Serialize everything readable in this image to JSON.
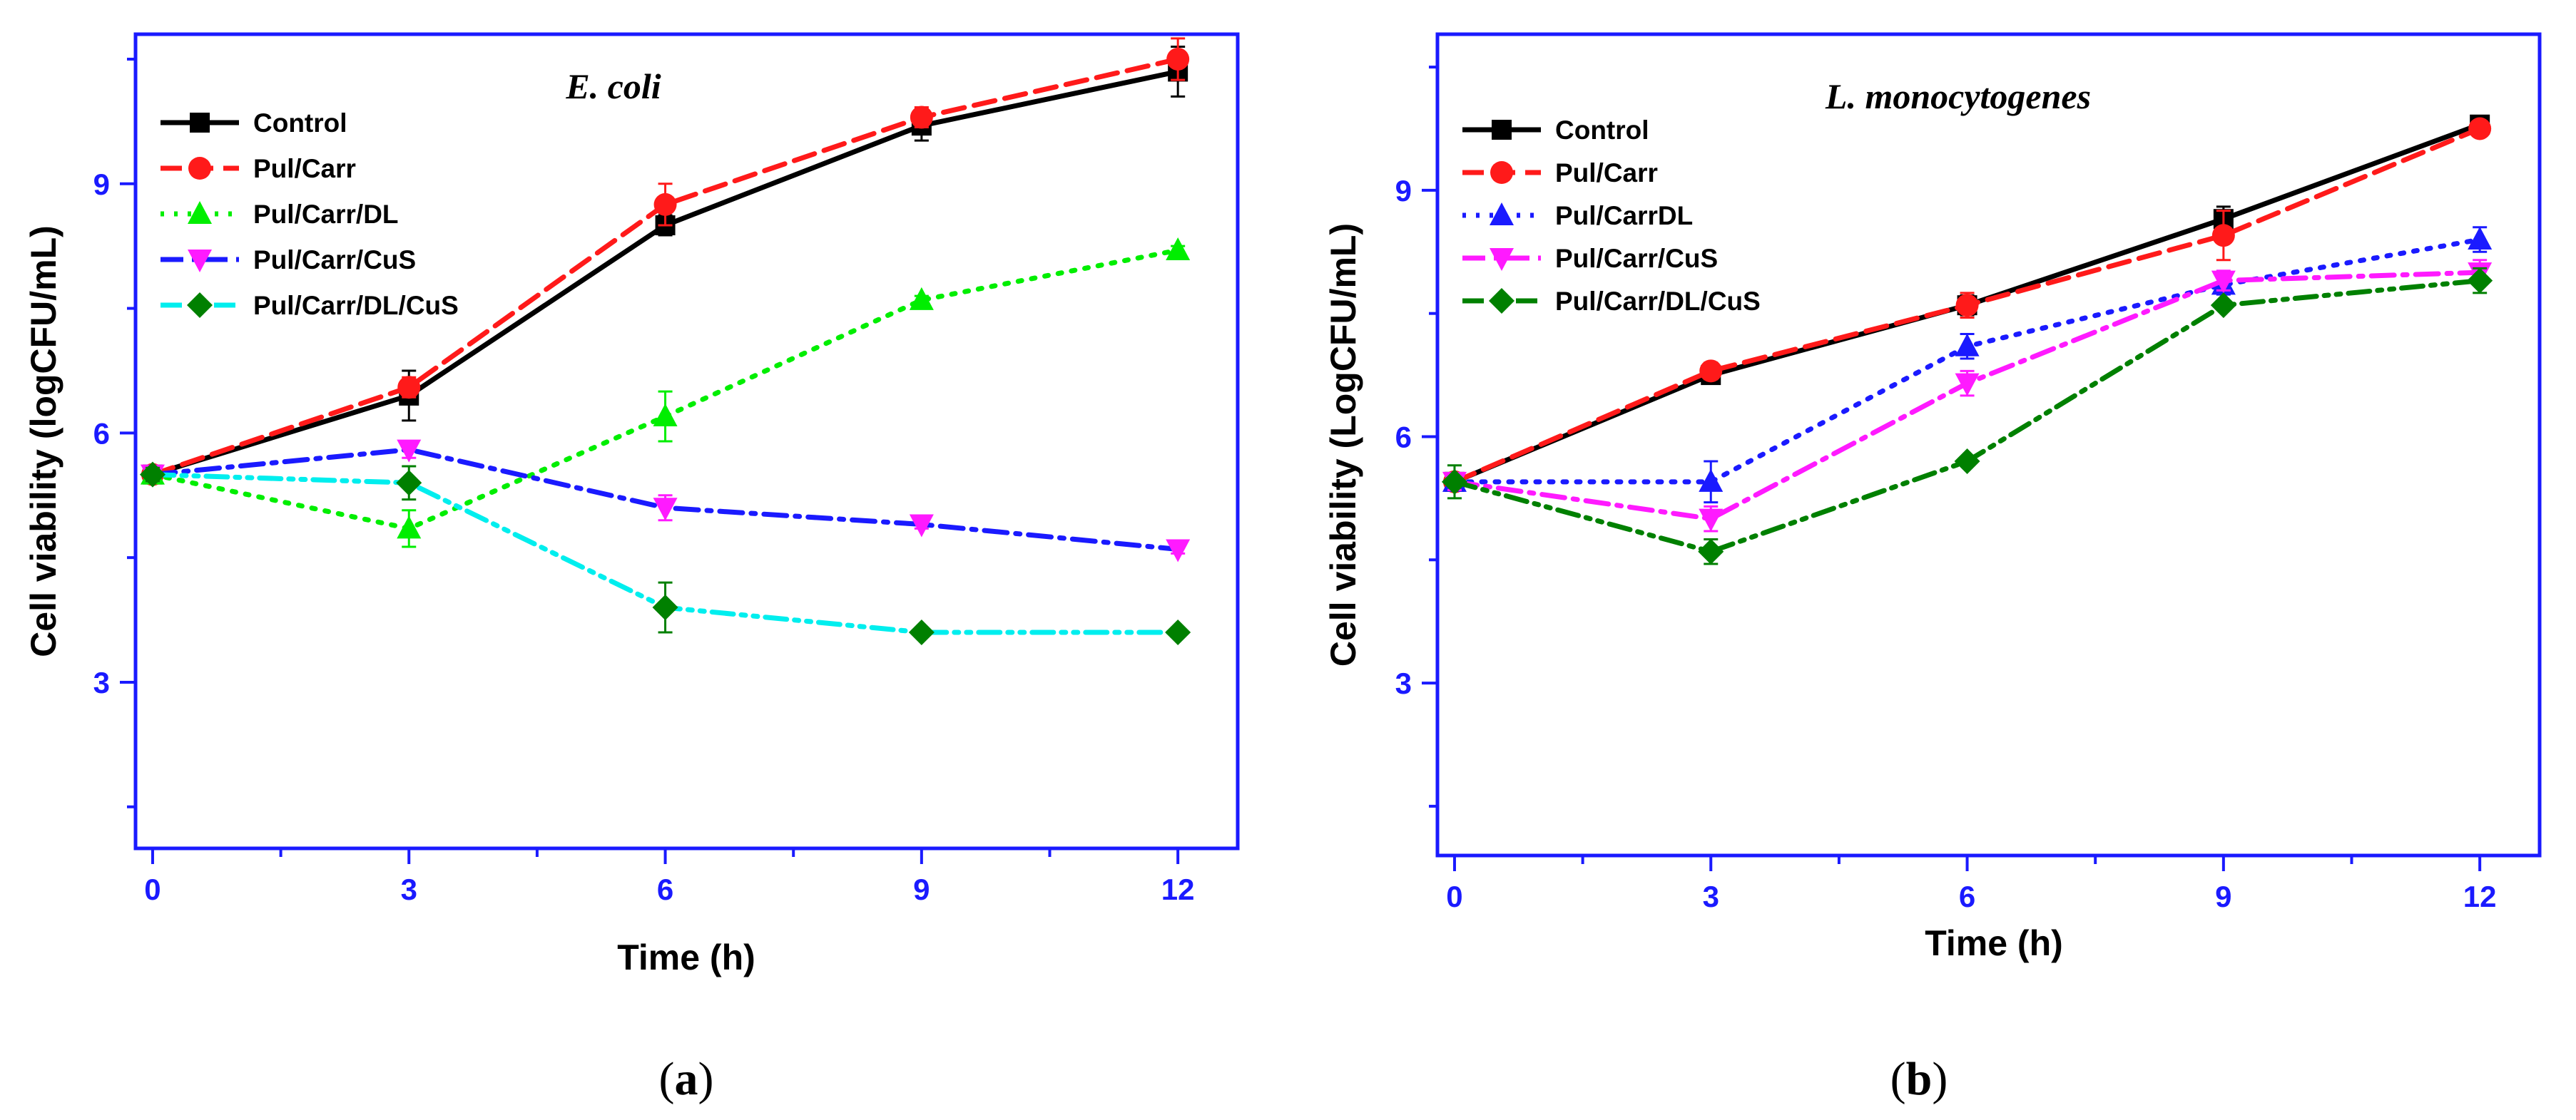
{
  "chart_data": [
    {
      "type": "line",
      "panel_label": "a",
      "title": "E. coli",
      "xlabel": "Time (h)",
      "ylabel": "Cell viability (logCFU/mL)",
      "xlim": [
        -0.2,
        12.7
      ],
      "ylim": [
        1.0,
        10.8
      ],
      "xticks": [
        0,
        3,
        6,
        9,
        12
      ],
      "yticks": [
        3,
        6,
        9
      ],
      "legend_position": "top-left",
      "series": [
        {
          "name": "Control",
          "color": "#000000",
          "dash": "solid",
          "marker": "square",
          "x": [
            0,
            3,
            6,
            9,
            12
          ],
          "y": [
            5.5,
            6.45,
            8.5,
            9.7,
            10.35
          ],
          "err": [
            0.1,
            0.3,
            0.12,
            0.18,
            0.3
          ]
        },
        {
          "name": "Pul/Carr",
          "color": "#ff1a1a",
          "dash": "dash",
          "marker": "circle",
          "x": [
            0,
            3,
            6,
            9,
            12
          ],
          "y": [
            5.5,
            6.55,
            8.75,
            9.8,
            10.5
          ],
          "err": [
            0.08,
            0.12,
            0.25,
            0.12,
            0.25
          ]
        },
        {
          "name": "Pul/Carr/DL",
          "color": "#00ee00",
          "dash": "dot",
          "marker": "triangle-up",
          "x": [
            0,
            3,
            6,
            9,
            12
          ],
          "y": [
            5.5,
            4.85,
            6.2,
            7.6,
            8.2
          ],
          "err": [
            0.08,
            0.22,
            0.3,
            0.05,
            0.05
          ]
        },
        {
          "name": "Pul/Carr/CuS",
          "color": "#ff1aff",
          "dash": "dashdot",
          "marker": "triangle-down",
          "line_color": "#1a1aff",
          "x": [
            0,
            3,
            6,
            9,
            12
          ],
          "y": [
            5.5,
            5.8,
            5.1,
            4.9,
            4.6
          ],
          "err": [
            0.08,
            0.1,
            0.15,
            0.05,
            0.05
          ]
        },
        {
          "name": "Pul/Carr/DL/CuS",
          "color": "#008000",
          "dash": "dashdotdot",
          "marker": "diamond",
          "line_color": "#00eeee",
          "x": [
            0,
            3,
            6,
            9,
            12
          ],
          "y": [
            5.5,
            5.4,
            3.9,
            3.6,
            3.6
          ],
          "err": [
            0.08,
            0.2,
            0.3,
            0.05,
            0.05
          ]
        }
      ]
    },
    {
      "type": "line",
      "panel_label": "b",
      "title": "L. monocytogenes",
      "xlabel": "Time (h)",
      "ylabel": "Cell viability (LogCFU/mL)",
      "xlim": [
        -0.2,
        12.7
      ],
      "ylim": [
        0.9,
        10.9
      ],
      "xticks": [
        0,
        3,
        6,
        9,
        12
      ],
      "yticks": [
        3,
        6,
        9
      ],
      "legend_position": "top-left",
      "series": [
        {
          "name": "Control",
          "color": "#000000",
          "dash": "solid",
          "marker": "square",
          "x": [
            0,
            3,
            6,
            9,
            12
          ],
          "y": [
            5.45,
            6.75,
            7.6,
            8.65,
            9.8
          ],
          "err": [
            0.1,
            0.1,
            0.12,
            0.15,
            0.08
          ]
        },
        {
          "name": "Pul/Carr",
          "color": "#ff1a1a",
          "dash": "dash",
          "marker": "circle",
          "x": [
            0,
            3,
            6,
            9,
            12
          ],
          "y": [
            5.45,
            6.8,
            7.6,
            8.45,
            9.75
          ],
          "err": [
            0.1,
            0.1,
            0.15,
            0.3,
            0.08
          ]
        },
        {
          "name": "Pul/CarrDL",
          "color": "#1a1aff",
          "dash": "dot",
          "marker": "triangle-up",
          "x": [
            0,
            3,
            6,
            9,
            12
          ],
          "y": [
            5.45,
            5.45,
            7.1,
            7.85,
            8.4
          ],
          "err": [
            0.1,
            0.25,
            0.15,
            0.12,
            0.15
          ]
        },
        {
          "name": "Pul/Carr/CuS",
          "color": "#ff1aff",
          "dash": "dashdot",
          "marker": "triangle-down",
          "x": [
            0,
            3,
            6,
            9,
            12
          ],
          "y": [
            5.45,
            5.0,
            6.65,
            7.9,
            8.0
          ],
          "err": [
            0.1,
            0.15,
            0.15,
            0.12,
            0.15
          ]
        },
        {
          "name": "Pul/Carr/DL/CuS",
          "color": "#008000",
          "dash": "dashdotdot",
          "marker": "diamond",
          "x": [
            0,
            3,
            6,
            9,
            12
          ],
          "y": [
            5.45,
            4.6,
            5.7,
            7.6,
            7.9
          ],
          "err": [
            0.2,
            0.15,
            0.05,
            0.05,
            0.15
          ]
        }
      ]
    }
  ]
}
